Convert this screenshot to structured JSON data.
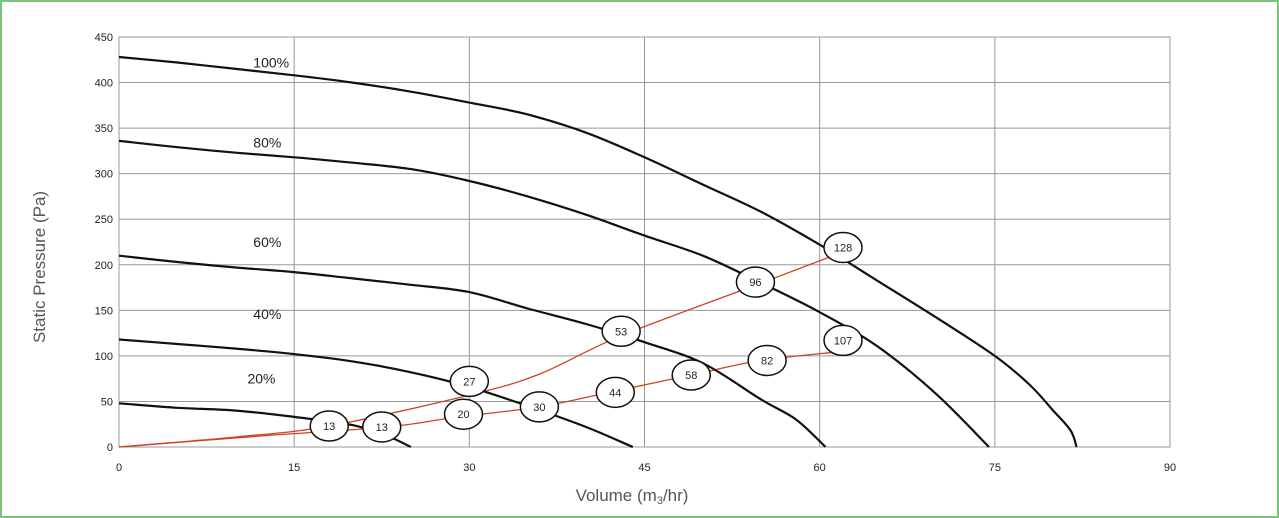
{
  "chart_data": {
    "type": "line",
    "xlabel": "Volume (m3/hr)",
    "ylabel": "Static Pressure (Pa)",
    "xlim": [
      0,
      90
    ],
    "ylim": [
      0,
      450
    ],
    "x_ticks": [
      0,
      15,
      30,
      45,
      60,
      75,
      90
    ],
    "y_ticks": [
      0,
      50,
      100,
      150,
      200,
      250,
      300,
      350,
      400,
      450
    ],
    "grid": true,
    "colors": {
      "fan_curve": "#111111",
      "system_curve": "#cc4422",
      "grid": "#999999",
      "frame": "#7cc576"
    },
    "fan_curves": [
      {
        "label": "100%",
        "label_at": [
          11.5,
          422
        ],
        "points": [
          [
            0,
            428
          ],
          [
            5,
            422
          ],
          [
            10,
            415
          ],
          [
            15,
            408
          ],
          [
            20,
            400
          ],
          [
            25,
            390
          ],
          [
            30,
            378
          ],
          [
            35,
            365
          ],
          [
            40,
            345
          ],
          [
            45,
            318
          ],
          [
            50,
            288
          ],
          [
            55,
            258
          ],
          [
            60,
            222
          ],
          [
            65,
            182
          ],
          [
            70,
            142
          ],
          [
            75,
            100
          ],
          [
            78,
            68
          ],
          [
            80,
            40
          ],
          [
            81.5,
            18
          ],
          [
            82,
            0
          ]
        ]
      },
      {
        "label": "80%",
        "label_at": [
          11.5,
          334
        ],
        "points": [
          [
            0,
            336
          ],
          [
            5,
            329
          ],
          [
            10,
            323
          ],
          [
            15,
            318
          ],
          [
            20,
            312
          ],
          [
            25,
            305
          ],
          [
            30,
            292
          ],
          [
            35,
            275
          ],
          [
            40,
            255
          ],
          [
            45,
            232
          ],
          [
            50,
            210
          ],
          [
            55,
            180
          ],
          [
            60,
            148
          ],
          [
            65,
            110
          ],
          [
            70,
            58
          ],
          [
            74.5,
            0
          ]
        ]
      },
      {
        "label": "60%",
        "label_at": [
          11.5,
          225
        ],
        "points": [
          [
            0,
            210
          ],
          [
            5,
            203
          ],
          [
            10,
            197
          ],
          [
            15,
            192
          ],
          [
            20,
            185
          ],
          [
            25,
            178
          ],
          [
            30,
            170
          ],
          [
            35,
            152
          ],
          [
            40,
            135
          ],
          [
            45,
            115
          ],
          [
            50,
            92
          ],
          [
            55,
            52
          ],
          [
            58,
            30
          ],
          [
            60.5,
            0
          ]
        ]
      },
      {
        "label": "40%",
        "label_at": [
          11.5,
          146
        ],
        "points": [
          [
            0,
            118
          ],
          [
            5,
            113
          ],
          [
            10,
            108
          ],
          [
            15,
            102
          ],
          [
            20,
            94
          ],
          [
            25,
            82
          ],
          [
            30,
            66
          ],
          [
            35,
            45
          ],
          [
            40,
            22
          ],
          [
            44,
            0
          ]
        ]
      },
      {
        "label": "20%",
        "label_at": [
          11,
          75
        ],
        "points": [
          [
            0,
            48
          ],
          [
            5,
            43
          ],
          [
            10,
            40
          ],
          [
            15,
            33
          ],
          [
            20,
            24
          ],
          [
            23,
            12
          ],
          [
            25,
            0
          ]
        ]
      }
    ],
    "system_curves": [
      {
        "points": [
          [
            0,
            0
          ],
          [
            10,
            11
          ],
          [
            18,
            23
          ],
          [
            30,
            57
          ],
          [
            36,
            80
          ],
          [
            43,
            122
          ],
          [
            55,
            180
          ],
          [
            62,
            214
          ]
        ],
        "bubbles": [
          {
            "x": 18,
            "y": 23,
            "text": "13"
          },
          {
            "x": 30,
            "y": 72,
            "text": "27"
          },
          {
            "x": 43,
            "y": 127,
            "text": "53"
          },
          {
            "x": 54.5,
            "y": 181,
            "text": "96"
          },
          {
            "x": 62,
            "y": 219,
            "text": "128"
          }
        ]
      },
      {
        "points": [
          [
            0,
            0
          ],
          [
            12,
            12
          ],
          [
            23,
            22
          ],
          [
            29,
            33
          ],
          [
            36,
            44
          ],
          [
            42,
            60
          ],
          [
            49,
            79
          ],
          [
            55,
            95
          ],
          [
            62,
            105
          ]
        ],
        "bubbles": [
          {
            "x": 22.5,
            "y": 22,
            "text": "13"
          },
          {
            "x": 29.5,
            "y": 36,
            "text": "20"
          },
          {
            "x": 36,
            "y": 44,
            "text": "30"
          },
          {
            "x": 42.5,
            "y": 60,
            "text": "44"
          },
          {
            "x": 49,
            "y": 79,
            "text": "58"
          },
          {
            "x": 55.5,
            "y": 95,
            "text": "82"
          },
          {
            "x": 62,
            "y": 117,
            "text": "107"
          }
        ]
      }
    ]
  },
  "labels": {
    "ylabel": "Static Pressure (Pa)",
    "xlabel_main": "Volume (m",
    "xlabel_sub": "3",
    "xlabel_end": "/hr)"
  }
}
